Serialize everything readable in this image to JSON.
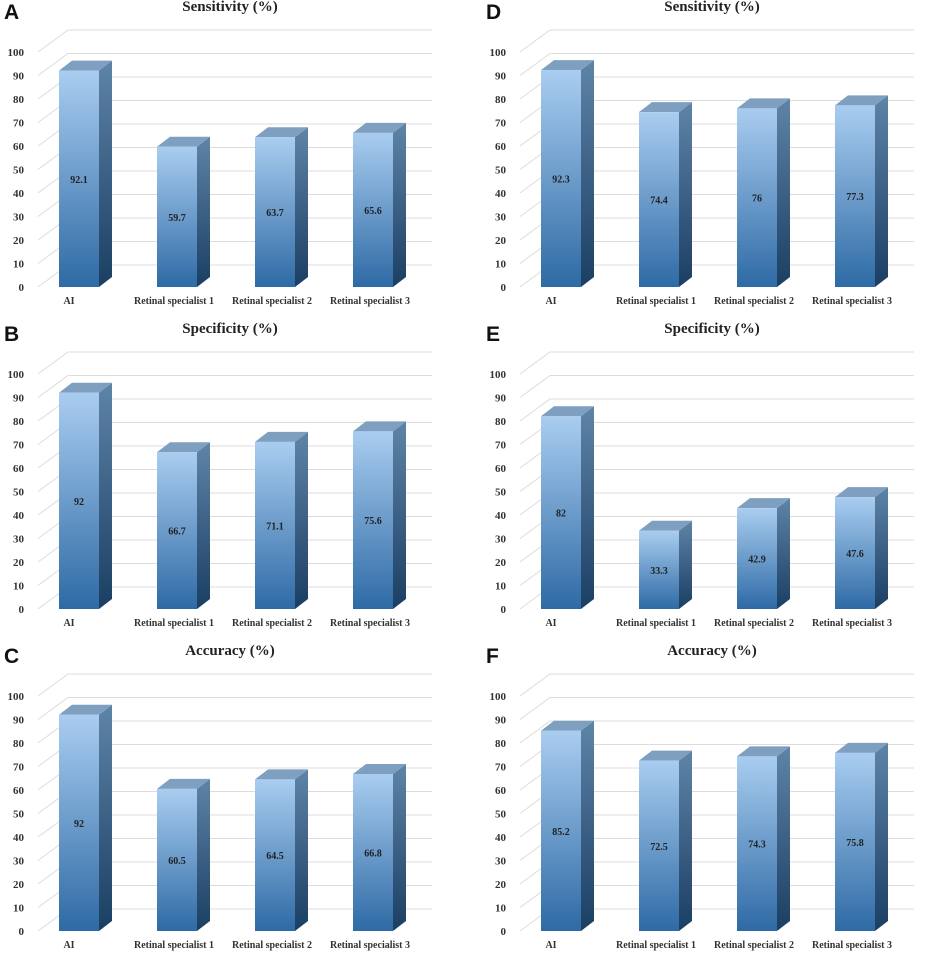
{
  "chart_data": [
    {
      "type": "bar",
      "panel": "A",
      "title": "Sensitivity (%)",
      "categories": [
        "AI",
        "Retinal specialist 1",
        "Retinal specialist 2",
        "Retinal specialist 3"
      ],
      "values": [
        92.1,
        59.7,
        63.7,
        65.6
      ],
      "value_labels": [
        "92.1",
        "59.7",
        "63.7",
        "65.6"
      ],
      "ylim": [
        0,
        100
      ],
      "yticks": [
        "0",
        "10",
        "20",
        "30",
        "40",
        "50",
        "60",
        "70",
        "80",
        "90",
        "100"
      ],
      "xlabel": "",
      "ylabel": "",
      "grid": true
    },
    {
      "type": "bar",
      "panel": "B",
      "title": "Specificity (%)",
      "categories": [
        "AI",
        "Retinal specialist 1",
        "Retinal specialist 2",
        "Retinal specialist 3"
      ],
      "values": [
        92,
        66.7,
        71.1,
        75.6
      ],
      "value_labels": [
        "92",
        "66.7",
        "71.1",
        "75.6"
      ],
      "ylim": [
        0,
        100
      ],
      "yticks": [
        "0",
        "10",
        "20",
        "30",
        "40",
        "50",
        "60",
        "70",
        "80",
        "90",
        "100"
      ],
      "xlabel": "",
      "ylabel": "",
      "grid": true
    },
    {
      "type": "bar",
      "panel": "C",
      "title": "Accuracy (%)",
      "categories": [
        "AI",
        "Retinal specialist 1",
        "Retinal specialist 2",
        "Retinal specialist 3"
      ],
      "values": [
        92,
        60.5,
        64.5,
        66.8
      ],
      "value_labels": [
        "92",
        "60.5",
        "64.5",
        "66.8"
      ],
      "ylim": [
        0,
        100
      ],
      "yticks": [
        "0",
        "10",
        "20",
        "30",
        "40",
        "50",
        "60",
        "70",
        "80",
        "90",
        "100"
      ],
      "xlabel": "",
      "ylabel": "",
      "grid": true
    },
    {
      "type": "bar",
      "panel": "D",
      "title": "Sensitivity (%)",
      "categories": [
        "AI",
        "Retinal specialist 1",
        "Retinal specialist 2",
        "Retinal specialist 3"
      ],
      "values": [
        92.3,
        74.4,
        76,
        77.3
      ],
      "value_labels": [
        "92.3",
        "74.4",
        "76",
        "77.3"
      ],
      "ylim": [
        0,
        100
      ],
      "yticks": [
        "0",
        "10",
        "20",
        "30",
        "40",
        "50",
        "60",
        "70",
        "80",
        "90",
        "100"
      ],
      "xlabel": "",
      "ylabel": "",
      "grid": true
    },
    {
      "type": "bar",
      "panel": "E",
      "title": "Specificity (%)",
      "categories": [
        "AI",
        "Retinal specialist 1",
        "Retinal specialist 2",
        "Retinal specialist 3"
      ],
      "values": [
        82,
        33.3,
        42.9,
        47.6
      ],
      "value_labels": [
        "82",
        "33.3",
        "42.9",
        "47.6"
      ],
      "ylim": [
        0,
        100
      ],
      "yticks": [
        "0",
        "10",
        "20",
        "30",
        "40",
        "50",
        "60",
        "70",
        "80",
        "90",
        "100"
      ],
      "xlabel": "",
      "ylabel": "",
      "grid": true
    },
    {
      "type": "bar",
      "panel": "F",
      "title": "Accuracy (%)",
      "categories": [
        "AI",
        "Retinal specialist 1",
        "Retinal specialist 2",
        "Retinal specialist 3"
      ],
      "values": [
        85.2,
        72.5,
        74.3,
        75.8
      ],
      "value_labels": [
        "85.2",
        "72.5",
        "74.3",
        "75.8"
      ],
      "ylim": [
        0,
        100
      ],
      "yticks": [
        "0",
        "10",
        "20",
        "30",
        "40",
        "50",
        "60",
        "70",
        "80",
        "90",
        "100"
      ],
      "xlabel": "",
      "ylabel": "",
      "grid": true
    }
  ],
  "colors": {
    "bar_front_top": "#a9cdf0",
    "bar_front_bottom": "#2e6aa5",
    "bar_side_top": "#5e84a8",
    "bar_side_bottom": "#1b3e63",
    "bar_top_face": "#7e9fbf",
    "gridline": "#dcdcdc"
  }
}
